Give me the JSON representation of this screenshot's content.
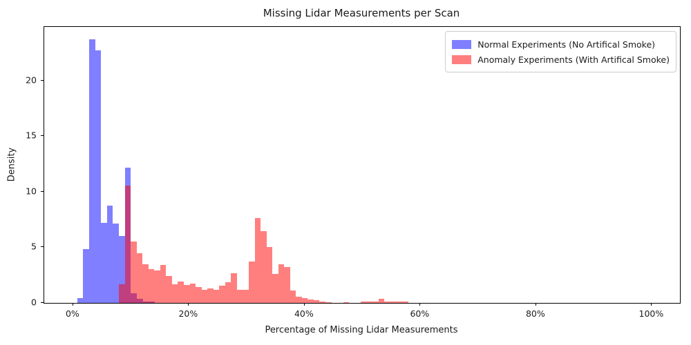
{
  "figure": {
    "title": "Missing Lidar Measurements per Scan",
    "x_axis_label": "Percentage of Missing Lidar Measurements",
    "y_axis_label": "Density",
    "background_color": "#FFFFFF",
    "spine_color": "#000000"
  },
  "chart_data": {
    "type": "histogram",
    "title": "Missing Lidar Measurements per Scan",
    "xlabel": "Percentage of Missing Lidar Measurements",
    "ylabel": "Density",
    "grid": false,
    "legend_position": "upper right",
    "xlim_pct": [
      -5,
      104.85
    ],
    "ylim": [
      0,
      24.84
    ],
    "x_ticks": {
      "values": [
        0,
        20,
        40,
        60,
        80,
        100
      ],
      "labels": [
        "0%",
        "20%",
        "40%",
        "60%",
        "80%",
        "100%"
      ]
    },
    "y_ticks": {
      "values": [
        0,
        5,
        10,
        15,
        20
      ],
      "labels": [
        "0",
        "5",
        "10",
        "15",
        "20"
      ]
    },
    "series": [
      {
        "name": "Normal Experiments (No Artifical Smoke)",
        "color": "#0000FF",
        "alpha": 0.5,
        "color_on_white": "#8080FF",
        "bin_start_pct": 0.7,
        "bin_width_pct": 1.03,
        "densities": [
          0.45,
          4.85,
          23.7,
          22.7,
          7.2,
          8.75,
          7.15,
          6.0,
          12.15,
          0.85,
          0.35,
          0.15,
          0.1
        ]
      },
      {
        "name": "Anomaly Experiments (With Artifical Smoke)",
        "color": "#FF0000",
        "alpha": 0.5,
        "color_on_white": "#FF8080",
        "bin_start_pct": 7.9,
        "bin_width_pct": 1.02,
        "densities": [
          1.7,
          10.55,
          5.5,
          4.45,
          3.5,
          3.05,
          2.9,
          3.4,
          2.45,
          1.7,
          1.95,
          1.6,
          1.75,
          1.45,
          1.15,
          1.3,
          1.15,
          1.55,
          1.85,
          2.7,
          1.2,
          1.2,
          3.75,
          7.65,
          6.45,
          5.05,
          2.6,
          3.5,
          3.25,
          1.1,
          0.55,
          0.45,
          0.3,
          0.25,
          0.15,
          0.08,
          0,
          0,
          0.06,
          0,
          0,
          0.14,
          0.15,
          0.15,
          0.4,
          0.12,
          0.1,
          0.1,
          0.1
        ]
      }
    ],
    "overlap_color_observed": "#BF4080"
  }
}
